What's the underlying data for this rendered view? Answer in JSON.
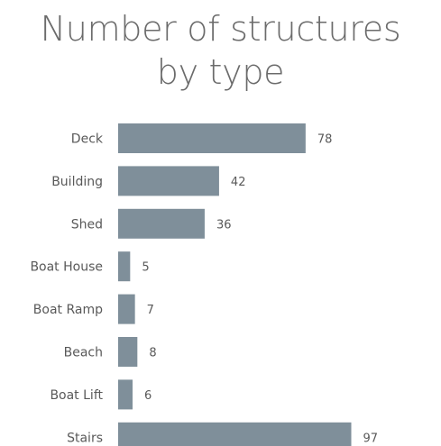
{
  "chart_data": {
    "type": "bar",
    "orientation": "horizontal",
    "title": "Number of structures by type",
    "title_lines": [
      "Number of structures",
      "by type"
    ],
    "categories": [
      "Deck",
      "Building",
      "Shed",
      "Boat House",
      "Boat Ramp",
      "Beach",
      "Boat Lift",
      "Stairs"
    ],
    "values": [
      78,
      42,
      36,
      5,
      7,
      8,
      6,
      97
    ],
    "xlim": [
      0,
      100
    ],
    "grid": false,
    "legend": "none",
    "bar_color": "#7f8f9a"
  }
}
